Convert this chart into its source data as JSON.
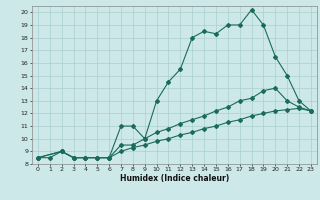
{
  "xlabel": "Humidex (Indice chaleur)",
  "ylabel": "",
  "xlim": [
    -0.5,
    23.5
  ],
  "ylim": [
    8,
    20.5
  ],
  "xticks": [
    0,
    1,
    2,
    3,
    4,
    5,
    6,
    7,
    8,
    9,
    10,
    11,
    12,
    13,
    14,
    15,
    16,
    17,
    18,
    19,
    20,
    21,
    22,
    23
  ],
  "yticks": [
    8,
    9,
    10,
    11,
    12,
    13,
    14,
    15,
    16,
    17,
    18,
    19,
    20
  ],
  "bg_color": "#cde8e8",
  "line_color": "#1a6b5a",
  "grid_color": "#aacfcf",
  "line1_x": [
    0,
    1,
    2,
    3,
    4,
    5,
    6,
    7,
    8,
    9,
    10,
    11,
    12,
    13,
    14,
    15,
    16,
    17,
    18,
    19,
    20,
    21,
    22,
    23
  ],
  "line1_y": [
    8.5,
    8.5,
    9.0,
    8.5,
    8.5,
    8.5,
    8.5,
    11.0,
    11.0,
    10.0,
    13.0,
    14.5,
    15.5,
    18.0,
    18.5,
    18.3,
    19.0,
    19.0,
    20.2,
    19.0,
    16.5,
    15.0,
    13.0,
    12.2
  ],
  "line2_x": [
    0,
    2,
    3,
    4,
    5,
    6,
    7,
    8,
    9,
    10,
    11,
    12,
    13,
    14,
    15,
    16,
    17,
    18,
    19,
    20,
    21,
    22,
    23
  ],
  "line2_y": [
    8.5,
    9.0,
    8.5,
    8.5,
    8.5,
    8.5,
    9.5,
    9.5,
    10.0,
    10.5,
    10.8,
    11.2,
    11.5,
    11.8,
    12.2,
    12.5,
    13.0,
    13.2,
    13.8,
    14.0,
    13.0,
    12.5,
    12.2
  ],
  "line3_x": [
    0,
    2,
    3,
    4,
    5,
    6,
    7,
    8,
    9,
    10,
    11,
    12,
    13,
    14,
    15,
    16,
    17,
    18,
    19,
    20,
    21,
    22,
    23
  ],
  "line3_y": [
    8.5,
    9.0,
    8.5,
    8.5,
    8.5,
    8.5,
    9.0,
    9.3,
    9.5,
    9.8,
    10.0,
    10.3,
    10.5,
    10.8,
    11.0,
    11.3,
    11.5,
    11.8,
    12.0,
    12.2,
    12.3,
    12.4,
    12.2
  ],
  "font_size_ticks": 4.5,
  "font_size_xlabel": 5.5
}
